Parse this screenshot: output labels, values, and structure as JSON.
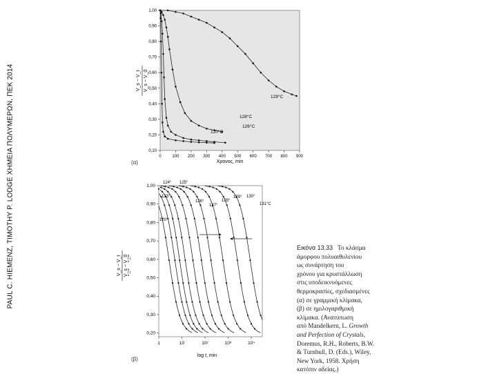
{
  "side_credit": "PAUL C. HIEMENZ, TIMOTHY P. LODGE XHMEIA ΠΟΛΥΜΕΡΩΝ, ΠΕΚ 2014",
  "panel_a": {
    "label": "(α)",
    "xlabel": "Χρονος, min",
    "ylabel_num": "V_s − V_t",
    "ylabel_den": "V_s − V_0",
    "xticks": [
      "0",
      "100",
      "200",
      "300",
      "400",
      "500",
      "600",
      "700",
      "800",
      "900"
    ],
    "yticks": [
      "0,10",
      "0,20",
      "0,30",
      "0,40",
      "0,50",
      "0,60",
      "0,70",
      "0,80",
      "0,90",
      "1,00"
    ],
    "curve_labels": [
      "129°C",
      "128°C",
      "126°C",
      "120°C"
    ]
  },
  "panel_b": {
    "label": "(β)",
    "xlabel": "log t, min",
    "ylabel_num": "V_s − V_t",
    "ylabel_den": "V_s − V_0",
    "xticks": [
      "1",
      "10",
      "10²",
      "10³",
      "10⁴"
    ],
    "yticks": [
      "0,20",
      "0,30",
      "0,40",
      "0,50",
      "0,60",
      "0,70",
      "0,80",
      "0,90",
      "1,00"
    ],
    "curve_labels": [
      "124°",
      "125°",
      "123°",
      "126°",
      "127°",
      "128°",
      "129°",
      "130°",
      "131°C",
      "120°"
    ]
  },
  "caption": {
    "title": "Εικόνα 13.33",
    "line1": "Το κλάσμα",
    "line2": "άμορφου πολυαιθυλενίου",
    "line3": "ως συνάρτηση του",
    "line4": "χρόνου για κρυστάλλωση",
    "line5": "στις υποδεικνυόμενες",
    "line6": "θερμοκρασίες, σχεδιασμένες",
    "line7": "(α) σε γραμμική κλίμακα,",
    "line8": "(β) σε ημιλογαριθμική",
    "line9": "κλίμακα. (Ανατύπωση",
    "line10": "από Mandelkern, L.",
    "line10_italic": "Growth",
    "line11_italic": "and Perfection of Crystals",
    "line11_end": ",",
    "line12": "Doremus, R.H., Roberts, B.W.",
    "line13": "& Turnbull, D. (Eds.), Wiley,",
    "line14": "New York, 1958. Χρήση",
    "line15": "κατόπιν αδείας.)"
  },
  "chart_data": [
    {
      "type": "line",
      "xlabel": "Χρονος, min",
      "ylabel": "(V_s − V_t)/(V_s − V_0)",
      "xlim": [
        0,
        900
      ],
      "ylim": [
        0.1,
        1.0
      ],
      "series": [
        {
          "name": "129°C",
          "x": [
            0,
            50,
            100,
            150,
            200,
            250,
            300,
            350,
            400,
            450,
            500,
            550,
            600,
            650,
            700,
            750,
            800,
            850,
            880
          ],
          "y": [
            1.0,
            1.0,
            0.99,
            0.98,
            0.96,
            0.94,
            0.92,
            0.89,
            0.86,
            0.82,
            0.77,
            0.72,
            0.66,
            0.6,
            0.55,
            0.51,
            0.48,
            0.46,
            0.45
          ]
        },
        {
          "name": "128°C",
          "x": [
            0,
            10,
            20,
            30,
            40,
            50,
            60,
            80,
            100,
            130,
            160,
            200,
            250,
            300,
            350,
            400
          ],
          "y": [
            1.0,
            0.99,
            0.97,
            0.94,
            0.89,
            0.83,
            0.75,
            0.62,
            0.51,
            0.41,
            0.34,
            0.29,
            0.26,
            0.24,
            0.23,
            0.22
          ]
        },
        {
          "name": "126°C",
          "x": [
            0,
            5,
            10,
            15,
            20,
            25,
            30,
            40,
            50,
            70,
            100,
            150,
            200,
            250,
            300,
            350,
            420
          ],
          "y": [
            1.0,
            0.98,
            0.93,
            0.85,
            0.72,
            0.57,
            0.43,
            0.31,
            0.26,
            0.22,
            0.2,
            0.18,
            0.17,
            0.165,
            0.16,
            0.155,
            0.15
          ]
        },
        {
          "name": "120°C",
          "x": [
            0,
            3,
            6,
            9,
            12,
            15,
            20,
            30,
            50,
            100,
            150,
            200,
            250,
            300,
            350
          ],
          "y": [
            1.0,
            0.95,
            0.8,
            0.6,
            0.4,
            0.28,
            0.22,
            0.19,
            0.175,
            0.165,
            0.16,
            0.155,
            0.152,
            0.15,
            0.148
          ]
        }
      ]
    },
    {
      "type": "line",
      "xlabel": "log t, min",
      "ylabel": "(V_s − V_t)/(V_s − V_0)",
      "xscale": "log",
      "xlim": [
        1,
        30000
      ],
      "ylim": [
        0.18,
        1.0
      ],
      "series": [
        {
          "name": "120°",
          "t_half": 2.8
        },
        {
          "name": "123°",
          "t_half": 5
        },
        {
          "name": "124°",
          "t_half": 8
        },
        {
          "name": "125°",
          "t_half": 14
        },
        {
          "name": "126°",
          "t_half": 30
        },
        {
          "name": "127°",
          "t_half": 70
        },
        {
          "name": "128°",
          "t_half": 180
        },
        {
          "name": "129°",
          "t_half": 600
        },
        {
          "name": "130°",
          "t_half": 2500
        },
        {
          "name": "131°C",
          "t_half": 9000
        }
      ]
    }
  ]
}
